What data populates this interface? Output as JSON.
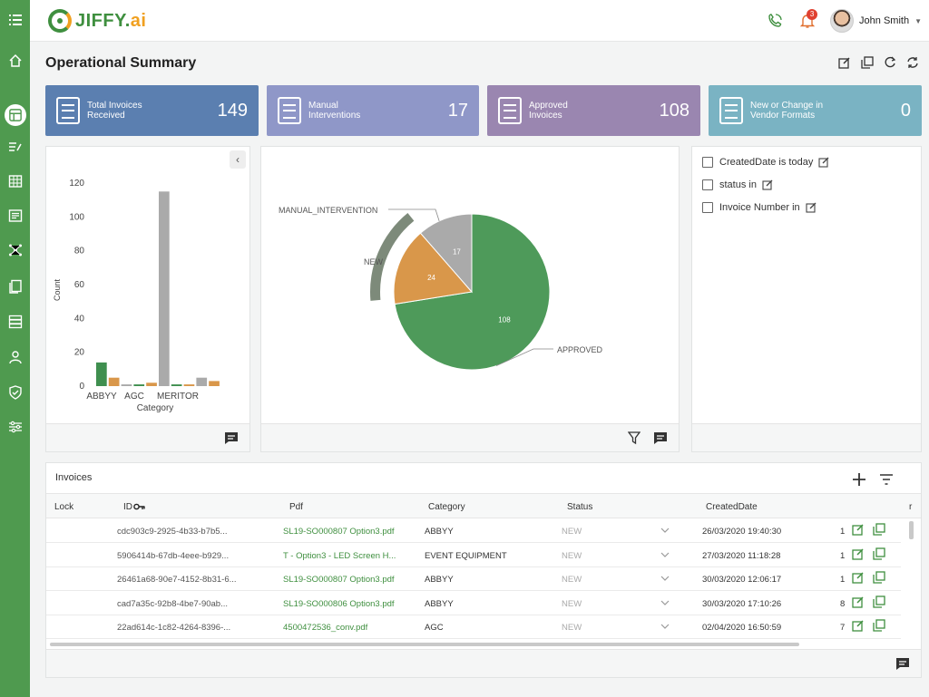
{
  "app": {
    "logo_main": "JIFFY.",
    "logo_ai": "ai"
  },
  "header": {
    "user_name": "John Smith",
    "notification_count": "3"
  },
  "page": {
    "title": "Operational Summary"
  },
  "kpis": [
    {
      "label": "Total Invoices\nReceived",
      "value": "149",
      "color": "#5b7fb0"
    },
    {
      "label": "Manual\nInterventions",
      "value": "17",
      "color": "#8f97c8"
    },
    {
      "label": "Approved\nInvoices",
      "value": "108",
      "color": "#9a86b0"
    },
    {
      "label": "New or Change in\nVendor Formats",
      "value": "0",
      "color": "#7ab3c3"
    }
  ],
  "bar_chart": {
    "ylabel": "Count",
    "xlabel": "Category",
    "ytick_labels": [
      "0",
      "20",
      "40",
      "60",
      "80",
      "100",
      "120"
    ],
    "xtick_labels": [
      "ABBYY",
      "AGC",
      "MERITOR"
    ]
  },
  "filters": [
    {
      "label": "CreatedDate is today"
    },
    {
      "label": "status in"
    },
    {
      "label": "Invoice Number in"
    }
  ],
  "table": {
    "title": "Invoices",
    "columns": {
      "lock": "Lock",
      "id": "ID",
      "pdf": "Pdf",
      "category": "Category",
      "status": "Status",
      "created": "CreatedDate",
      "extra": "r"
    },
    "rows": [
      {
        "id": "cdc903c9-2925-4b33-b7b5...",
        "pdf": "SL19-SO000807 Option3.pdf",
        "category": "ABBYY",
        "status": "NEW",
        "created": "26/03/2020 19:40:30",
        "extra": "1"
      },
      {
        "id": "5906414b-67db-4eee-b929...",
        "pdf": "T - Option3 - LED Screen H...",
        "category": "EVENT EQUIPMENT",
        "status": "NEW",
        "created": "27/03/2020 11:18:28",
        "extra": "1"
      },
      {
        "id": "26461a68-90e7-4152-8b31-6...",
        "pdf": "SL19-SO000807 Option3.pdf",
        "category": "ABBYY",
        "status": "NEW",
        "created": "30/03/2020 12:06:17",
        "extra": "1"
      },
      {
        "id": "cad7a35c-92b8-4be7-90ab...",
        "pdf": "SL19-SO000806 Option3.pdf",
        "category": "ABBYY",
        "status": "NEW",
        "created": "30/03/2020 17:10:26",
        "extra": "8"
      },
      {
        "id": "22ad614c-1c82-4264-8396-...",
        "pdf": "4500472536_conv.pdf",
        "category": "AGC",
        "status": "NEW",
        "created": "02/04/2020 16:50:59",
        "extra": "7"
      }
    ]
  },
  "chart_data": [
    {
      "type": "bar",
      "xlabel": "Category",
      "ylabel": "Count",
      "ylim": [
        0,
        120
      ],
      "categories": [
        "ABBYY",
        "",
        "AGC",
        "",
        "",
        "",
        "MERITOR",
        "",
        "",
        ""
      ],
      "values": [
        14,
        5,
        1,
        1,
        2,
        115,
        1,
        1,
        5,
        3
      ],
      "bar_colors": [
        "#3f8f4f",
        "#d9974a",
        "#aaaaaa",
        "#3f8f4f",
        "#d9974a",
        "#aaaaaa",
        "#3f8f4f",
        "#d9974a",
        "#aaaaaa",
        "#d9974a"
      ]
    },
    {
      "type": "pie",
      "labels": [
        "APPROVED",
        "NEW",
        "MANUAL_INTERVENTION"
      ],
      "values": [
        108,
        24,
        17
      ],
      "colors": [
        "#4e9a5a",
        "#d9974a",
        "#aaaaaa"
      ]
    }
  ]
}
